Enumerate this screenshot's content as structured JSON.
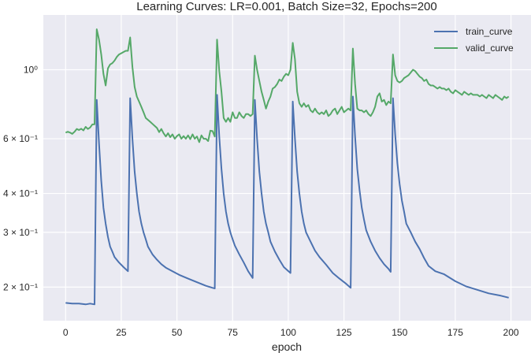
{
  "chart_data": {
    "type": "line",
    "title": "Learning Curves: LR=0.001, Batch Size=32, Epochs=200",
    "xlabel": "epoch",
    "ylabel": "",
    "yscale": "log",
    "xlim": [
      -10,
      209
    ],
    "ylim": [
      0.156,
      1.5
    ],
    "grid": true,
    "legend_position": "top-right",
    "x_ticks": [
      0,
      25,
      50,
      75,
      100,
      125,
      150,
      175,
      200
    ],
    "y_ticks": [
      {
        "value": 0.2,
        "label": "2 × 10⁻¹"
      },
      {
        "value": 0.3,
        "label": "3 × 10⁻¹"
      },
      {
        "value": 0.4,
        "label": "4 × 10⁻¹"
      },
      {
        "value": 0.6,
        "label": "6 × 10⁻¹"
      },
      {
        "value": 1.0,
        "label": "10⁰"
      }
    ],
    "colors": {
      "background": "#eaeaf2",
      "grid": "#ffffff",
      "train_curve": "#4c72b0",
      "valid_curve": "#55a868"
    },
    "series": [
      {
        "name": "train_curve",
        "color": "#4c72b0",
        "points": [
          [
            0,
            0.178
          ],
          [
            3,
            0.177
          ],
          [
            6,
            0.177
          ],
          [
            9,
            0.176
          ],
          [
            11,
            0.177
          ],
          [
            13,
            0.176
          ],
          [
            14,
            0.8
          ],
          [
            15,
            0.58
          ],
          [
            16,
            0.44
          ],
          [
            17,
            0.36
          ],
          [
            18,
            0.32
          ],
          [
            19,
            0.29
          ],
          [
            20,
            0.27
          ],
          [
            21,
            0.26
          ],
          [
            22,
            0.25
          ],
          [
            24,
            0.24
          ],
          [
            26,
            0.232
          ],
          [
            28,
            0.225
          ],
          [
            29,
            0.81
          ],
          [
            30,
            0.6
          ],
          [
            31,
            0.47
          ],
          [
            32,
            0.4
          ],
          [
            33,
            0.35
          ],
          [
            34,
            0.32
          ],
          [
            35,
            0.3
          ],
          [
            36,
            0.285
          ],
          [
            37,
            0.27
          ],
          [
            39,
            0.255
          ],
          [
            41,
            0.245
          ],
          [
            43,
            0.237
          ],
          [
            45,
            0.231
          ],
          [
            48,
            0.225
          ],
          [
            51,
            0.219
          ],
          [
            55,
            0.213
          ],
          [
            60,
            0.206
          ],
          [
            63,
            0.202
          ],
          [
            66,
            0.199
          ],
          [
            67,
            0.198
          ],
          [
            68,
            0.83
          ],
          [
            69,
            0.61
          ],
          [
            70,
            0.48
          ],
          [
            71,
            0.4
          ],
          [
            72,
            0.35
          ],
          [
            73,
            0.32
          ],
          [
            74,
            0.3
          ],
          [
            75,
            0.285
          ],
          [
            76,
            0.272
          ],
          [
            78,
            0.255
          ],
          [
            80,
            0.24
          ],
          [
            82,
            0.225
          ],
          [
            84,
            0.214
          ],
          [
            85,
            0.8
          ],
          [
            86,
            0.6
          ],
          [
            87,
            0.47
          ],
          [
            88,
            0.4
          ],
          [
            89,
            0.35
          ],
          [
            90,
            0.32
          ],
          [
            91,
            0.3
          ],
          [
            92,
            0.28
          ],
          [
            94,
            0.26
          ],
          [
            96,
            0.245
          ],
          [
            98,
            0.232
          ],
          [
            101,
            0.222
          ],
          [
            102,
            0.79
          ],
          [
            103,
            0.6
          ],
          [
            104,
            0.47
          ],
          [
            105,
            0.4
          ],
          [
            106,
            0.35
          ],
          [
            107,
            0.32
          ],
          [
            108,
            0.3
          ],
          [
            110,
            0.28
          ],
          [
            112,
            0.262
          ],
          [
            114,
            0.25
          ],
          [
            117,
            0.236
          ],
          [
            120,
            0.222
          ],
          [
            123,
            0.213
          ],
          [
            126,
            0.205
          ],
          [
            128,
            0.199
          ],
          [
            129,
            0.82
          ],
          [
            130,
            0.61
          ],
          [
            131,
            0.48
          ],
          [
            132,
            0.41
          ],
          [
            133,
            0.36
          ],
          [
            134,
            0.33
          ],
          [
            135,
            0.305
          ],
          [
            137,
            0.28
          ],
          [
            139,
            0.262
          ],
          [
            141,
            0.248
          ],
          [
            143,
            0.237
          ],
          [
            145,
            0.229
          ],
          [
            146,
            0.224
          ],
          [
            147,
            0.81
          ],
          [
            148,
            0.62
          ],
          [
            149,
            0.5
          ],
          [
            150,
            0.43
          ],
          [
            151,
            0.38
          ],
          [
            152,
            0.35
          ],
          [
            153,
            0.32
          ],
          [
            155,
            0.3
          ],
          [
            157,
            0.28
          ],
          [
            159,
            0.265
          ],
          [
            161,
            0.248
          ],
          [
            163,
            0.234
          ],
          [
            166,
            0.225
          ],
          [
            170,
            0.22
          ],
          [
            175,
            0.209
          ],
          [
            180,
            0.201
          ],
          [
            185,
            0.196
          ],
          [
            190,
            0.191
          ],
          [
            195,
            0.188
          ],
          [
            199,
            0.185
          ]
        ]
      },
      {
        "name": "valid_curve",
        "color": "#55a868",
        "points": [
          [
            0,
            0.628
          ],
          [
            1,
            0.632
          ],
          [
            2,
            0.628
          ],
          [
            3,
            0.622
          ],
          [
            4,
            0.632
          ],
          [
            5,
            0.645
          ],
          [
            6,
            0.64
          ],
          [
            7,
            0.646
          ],
          [
            8,
            0.638
          ],
          [
            9,
            0.655
          ],
          [
            10,
            0.645
          ],
          [
            11,
            0.652
          ],
          [
            12,
            0.667
          ],
          [
            13,
            0.668
          ],
          [
            14,
            1.35
          ],
          [
            15,
            1.25
          ],
          [
            16,
            1.12
          ],
          [
            17,
            0.97
          ],
          [
            18,
            0.89
          ],
          [
            19,
            1.01
          ],
          [
            20,
            1.04
          ],
          [
            21,
            1.05
          ],
          [
            22,
            1.07
          ],
          [
            23,
            1.1
          ],
          [
            24,
            1.12
          ],
          [
            25,
            1.13
          ],
          [
            26,
            1.14
          ],
          [
            27,
            1.15
          ],
          [
            28,
            1.15
          ],
          [
            29,
            1.27
          ],
          [
            30,
            1.02
          ],
          [
            31,
            0.88
          ],
          [
            32,
            0.82
          ],
          [
            33,
            0.79
          ],
          [
            34,
            0.76
          ],
          [
            35,
            0.73
          ],
          [
            36,
            0.7
          ],
          [
            37,
            0.69
          ],
          [
            38,
            0.68
          ],
          [
            39,
            0.67
          ],
          [
            40,
            0.66
          ],
          [
            41,
            0.65
          ],
          [
            42,
            0.63
          ],
          [
            43,
            0.645
          ],
          [
            44,
            0.625
          ],
          [
            45,
            0.61
          ],
          [
            46,
            0.625
          ],
          [
            47,
            0.607
          ],
          [
            48,
            0.62
          ],
          [
            49,
            0.6
          ],
          [
            50,
            0.612
          ],
          [
            51,
            0.62
          ],
          [
            52,
            0.6
          ],
          [
            53,
            0.612
          ],
          [
            54,
            0.6
          ],
          [
            55,
            0.615
          ],
          [
            56,
            0.598
          ],
          [
            57,
            0.62
          ],
          [
            58,
            0.6
          ],
          [
            59,
            0.61
          ],
          [
            60,
            0.585
          ],
          [
            61,
            0.615
          ],
          [
            62,
            0.6
          ],
          [
            63,
            0.6
          ],
          [
            64,
            0.59
          ],
          [
            65,
            0.637
          ],
          [
            66,
            0.635
          ],
          [
            67,
            0.61
          ],
          [
            68,
            1.25
          ],
          [
            69,
            0.99
          ],
          [
            70,
            0.85
          ],
          [
            71,
            0.7
          ],
          [
            72,
            0.68
          ],
          [
            73,
            0.7
          ],
          [
            74,
            0.68
          ],
          [
            75,
            0.73
          ],
          [
            76,
            0.7
          ],
          [
            77,
            0.7
          ],
          [
            78,
            0.73
          ],
          [
            79,
            0.71
          ],
          [
            80,
            0.7
          ],
          [
            81,
            0.72
          ],
          [
            82,
            0.72
          ],
          [
            83,
            0.71
          ],
          [
            84,
            0.72
          ],
          [
            85,
            1.11
          ],
          [
            86,
            1.0
          ],
          [
            87,
            0.92
          ],
          [
            88,
            0.85
          ],
          [
            89,
            0.8
          ],
          [
            90,
            0.75
          ],
          [
            91,
            0.79
          ],
          [
            92,
            0.82
          ],
          [
            93,
            0.87
          ],
          [
            94,
            0.88
          ],
          [
            95,
            0.9
          ],
          [
            96,
            0.93
          ],
          [
            97,
            0.92
          ],
          [
            98,
            0.95
          ],
          [
            99,
            0.97
          ],
          [
            100,
            0.96
          ],
          [
            101,
            1.0
          ],
          [
            102,
            1.22
          ],
          [
            103,
            1.08
          ],
          [
            104,
            0.85
          ],
          [
            105,
            0.78
          ],
          [
            106,
            0.76
          ],
          [
            107,
            0.78
          ],
          [
            108,
            0.76
          ],
          [
            109,
            0.77
          ],
          [
            110,
            0.74
          ],
          [
            111,
            0.73
          ],
          [
            112,
            0.75
          ],
          [
            113,
            0.73
          ],
          [
            114,
            0.72
          ],
          [
            115,
            0.73
          ],
          [
            116,
            0.72
          ],
          [
            117,
            0.74
          ],
          [
            118,
            0.71
          ],
          [
            119,
            0.72
          ],
          [
            120,
            0.74
          ],
          [
            121,
            0.75
          ],
          [
            122,
            0.72
          ],
          [
            123,
            0.74
          ],
          [
            124,
            0.76
          ],
          [
            125,
            0.73
          ],
          [
            126,
            0.74
          ],
          [
            127,
            0.75
          ],
          [
            128,
            0.74
          ],
          [
            129,
            1.17
          ],
          [
            130,
            0.9
          ],
          [
            131,
            0.75
          ],
          [
            132,
            0.74
          ],
          [
            133,
            0.74
          ],
          [
            134,
            0.73
          ],
          [
            135,
            0.74
          ],
          [
            136,
            0.72
          ],
          [
            137,
            0.71
          ],
          [
            138,
            0.73
          ],
          [
            139,
            0.76
          ],
          [
            140,
            0.82
          ],
          [
            141,
            0.84
          ],
          [
            142,
            0.79
          ],
          [
            143,
            0.8
          ],
          [
            144,
            0.77
          ],
          [
            145,
            0.79
          ],
          [
            146,
            0.78
          ],
          [
            147,
            1.12
          ],
          [
            148,
            0.96
          ],
          [
            149,
            0.92
          ],
          [
            150,
            0.91
          ],
          [
            151,
            0.92
          ],
          [
            152,
            0.94
          ],
          [
            153,
            0.95
          ],
          [
            154,
            0.96
          ],
          [
            155,
            0.98
          ],
          [
            156,
            1.0
          ],
          [
            157,
            0.99
          ],
          [
            158,
            0.97
          ],
          [
            159,
            0.95
          ],
          [
            160,
            0.94
          ],
          [
            161,
            0.92
          ],
          [
            162,
            0.93
          ],
          [
            163,
            0.9
          ],
          [
            164,
            0.89
          ],
          [
            165,
            0.89
          ],
          [
            166,
            0.88
          ],
          [
            167,
            0.87
          ],
          [
            168,
            0.88
          ],
          [
            169,
            0.87
          ],
          [
            170,
            0.87
          ],
          [
            171,
            0.86
          ],
          [
            172,
            0.87
          ],
          [
            173,
            0.85
          ],
          [
            174,
            0.84
          ],
          [
            175,
            0.86
          ],
          [
            176,
            0.85
          ],
          [
            177,
            0.84
          ],
          [
            178,
            0.83
          ],
          [
            179,
            0.85
          ],
          [
            180,
            0.84
          ],
          [
            181,
            0.83
          ],
          [
            182,
            0.84
          ],
          [
            183,
            0.83
          ],
          [
            184,
            0.83
          ],
          [
            185,
            0.83
          ],
          [
            186,
            0.82
          ],
          [
            187,
            0.83
          ],
          [
            188,
            0.82
          ],
          [
            189,
            0.81
          ],
          [
            190,
            0.83
          ],
          [
            191,
            0.82
          ],
          [
            192,
            0.81
          ],
          [
            193,
            0.83
          ],
          [
            194,
            0.82
          ],
          [
            195,
            0.81
          ],
          [
            196,
            0.8
          ],
          [
            197,
            0.82
          ],
          [
            198,
            0.81
          ],
          [
            199,
            0.82
          ]
        ]
      }
    ]
  }
}
